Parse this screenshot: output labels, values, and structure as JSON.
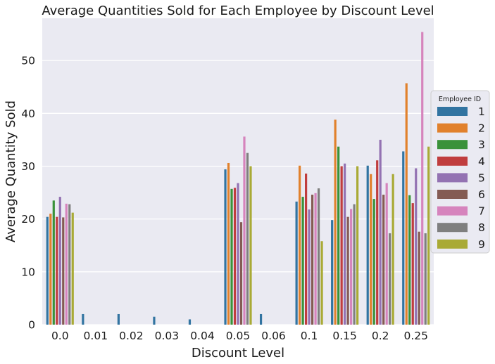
{
  "chart_data": {
    "type": "bar",
    "title": "Average Quantities Sold for Each Employee by Discount Level",
    "xlabel": "Discount Level",
    "ylabel": "Average Quantity Sold",
    "ylim": [
      0,
      58
    ],
    "yticks": [
      0,
      10,
      20,
      30,
      40,
      50
    ],
    "grid": true,
    "legend_title": "Employee ID",
    "legend_position": "right",
    "categories": [
      "0.0",
      "0.01",
      "0.02",
      "0.03",
      "0.04",
      "0.05",
      "0.06",
      "0.1",
      "0.15",
      "0.2",
      "0.25"
    ],
    "series": [
      {
        "name": "1",
        "color": "#3274a1",
        "values": [
          20.4,
          2,
          2,
          1.5,
          1,
          29.4,
          2,
          23.3,
          19.8,
          30.1,
          32.8
        ]
      },
      {
        "name": "2",
        "color": "#e1812c",
        "values": [
          21,
          null,
          null,
          null,
          null,
          30.6,
          null,
          30.1,
          38.8,
          28.5,
          45.7
        ]
      },
      {
        "name": "3",
        "color": "#3a923a",
        "values": [
          23.5,
          null,
          null,
          null,
          null,
          25.7,
          null,
          24.2,
          33.7,
          23.8,
          24.5
        ]
      },
      {
        "name": "4",
        "color": "#c03d3e",
        "values": [
          20.4,
          null,
          null,
          null,
          null,
          25.9,
          null,
          28.6,
          30,
          31.1,
          23
        ]
      },
      {
        "name": "5",
        "color": "#9372b2",
        "values": [
          24.2,
          null,
          null,
          null,
          null,
          26.8,
          null,
          21.8,
          30.5,
          35,
          29.6
        ]
      },
      {
        "name": "6",
        "color": "#845b53",
        "values": [
          20.3,
          null,
          null,
          null,
          null,
          19.4,
          null,
          24.6,
          20.4,
          24.6,
          17.6
        ]
      },
      {
        "name": "7",
        "color": "#d684bd",
        "values": [
          22.9,
          null,
          null,
          null,
          null,
          35.6,
          null,
          24.9,
          21.9,
          26.8,
          55.4
        ]
      },
      {
        "name": "8",
        "color": "#7f7f7f",
        "values": [
          22.8,
          null,
          null,
          null,
          null,
          32.5,
          null,
          25.8,
          22.8,
          17.3,
          17.3
        ]
      },
      {
        "name": "9",
        "color": "#a9aa35",
        "values": [
          21.2,
          null,
          null,
          null,
          null,
          30,
          null,
          15.8,
          30,
          28.5,
          33.7
        ]
      }
    ]
  }
}
